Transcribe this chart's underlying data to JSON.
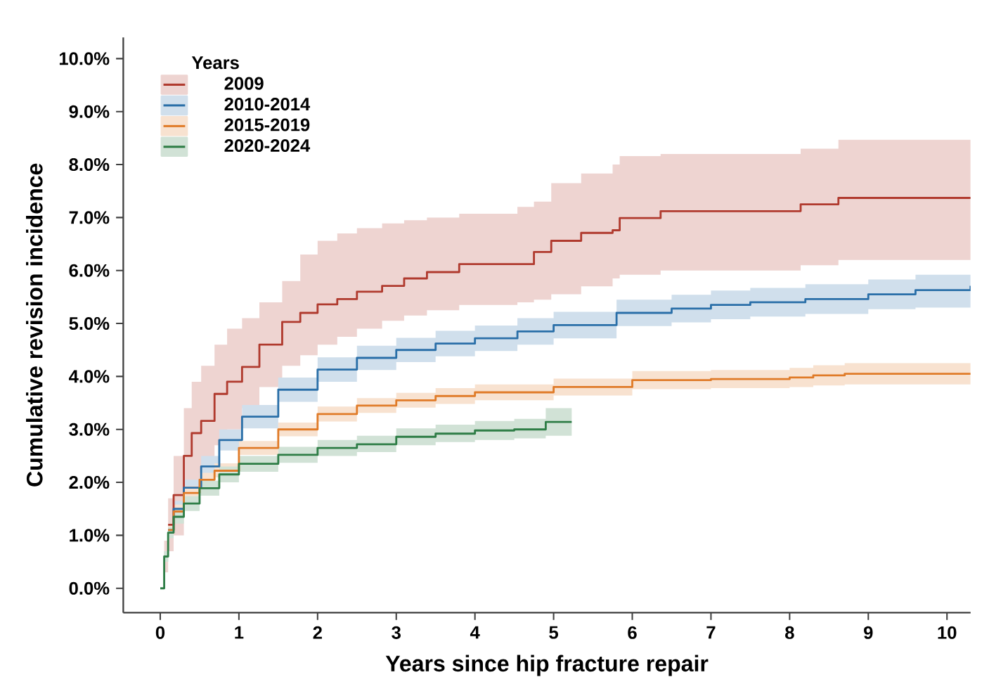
{
  "chart_data": {
    "type": "step",
    "xlabel": "Years since hip fracture repair",
    "ylabel": "Cumulative revision incidence",
    "legend_title": "Years",
    "legend": "top left",
    "xlim": [
      -0.47,
      10.3
    ],
    "ylim": [
      -0.46,
      10.4
    ],
    "xticks": [
      0,
      1,
      2,
      3,
      4,
      5,
      6,
      7,
      8,
      9,
      10
    ],
    "yticks": [
      {
        "value": 0,
        "label": "0.0%"
      },
      {
        "value": 1,
        "label": "1.0%"
      },
      {
        "value": 2,
        "label": "2.0%"
      },
      {
        "value": 3,
        "label": "3.0%"
      },
      {
        "value": 4,
        "label": "4.0%"
      },
      {
        "value": 5,
        "label": "5.0%"
      },
      {
        "value": 6,
        "label": "6.0%"
      },
      {
        "value": 7,
        "label": "7.0%"
      },
      {
        "value": 8,
        "label": "8.0%"
      },
      {
        "value": 9,
        "label": "9.0%"
      },
      {
        "value": 10,
        "label": "10.0%"
      }
    ],
    "series": [
      {
        "name": "2009",
        "color": "#b03a2e",
        "x": [
          0,
          0.05,
          0.1,
          0.17,
          0.3,
          0.4,
          0.52,
          0.69,
          0.85,
          1.04,
          1.26,
          1.55,
          1.78,
          2.0,
          2.25,
          2.5,
          2.82,
          3.1,
          3.39,
          3.8,
          4.54,
          4.75,
          4.97,
          5.35,
          5.75,
          5.84,
          6.36,
          8.14,
          8.62,
          10.3
        ],
        "values": [
          null,
          null,
          1.2,
          1.76,
          2.5,
          2.93,
          3.16,
          3.67,
          3.9,
          4.18,
          4.6,
          5.03,
          5.2,
          5.36,
          5.46,
          5.6,
          5.71,
          5.85,
          5.97,
          6.12,
          6.12,
          6.35,
          6.56,
          6.71,
          6.76,
          6.99,
          7.12,
          7.25,
          7.37,
          7.37
        ],
        "lower": [
          0,
          0.3,
          0.7,
          1.0,
          1.6,
          1.9,
          2.2,
          2.7,
          3.0,
          3.4,
          3.8,
          4.2,
          4.4,
          4.6,
          4.75,
          4.9,
          5.05,
          5.15,
          5.25,
          5.35,
          5.4,
          5.45,
          5.55,
          5.7,
          5.85,
          5.92,
          6.0,
          6.1,
          6.2,
          6.2
        ],
        "upper": [
          0,
          0.9,
          1.7,
          2.5,
          3.4,
          3.9,
          4.2,
          4.6,
          4.9,
          5.1,
          5.4,
          5.8,
          6.3,
          6.56,
          6.7,
          6.8,
          6.89,
          6.95,
          7.0,
          7.07,
          7.2,
          7.3,
          7.65,
          7.83,
          8.0,
          8.16,
          8.2,
          8.3,
          8.47,
          8.47
        ]
      },
      {
        "name": "2010-2014",
        "color": "#2a6fa8",
        "x": [
          0,
          0.05,
          0.1,
          0.17,
          0.3,
          0.52,
          0.75,
          1.04,
          1.5,
          2.0,
          2.5,
          3.0,
          3.5,
          4.0,
          4.54,
          5.0,
          5.8,
          6.5,
          7.0,
          7.5,
          8.2,
          9.0,
          9.6,
          10.3
        ],
        "values": [
          null,
          null,
          1.1,
          1.5,
          1.9,
          2.3,
          2.8,
          3.24,
          3.75,
          4.13,
          4.35,
          4.5,
          4.62,
          4.72,
          4.85,
          4.97,
          5.2,
          5.28,
          5.35,
          5.4,
          5.46,
          5.55,
          5.63,
          5.71
        ],
        "lower": [
          0,
          0.5,
          1.0,
          1.35,
          1.75,
          2.1,
          2.6,
          3.02,
          3.52,
          3.9,
          4.12,
          4.27,
          4.38,
          4.48,
          4.6,
          4.72,
          4.95,
          5.02,
          5.08,
          5.13,
          5.18,
          5.27,
          5.3,
          5.34
        ],
        "upper": [
          0,
          0.7,
          1.2,
          1.65,
          2.05,
          2.5,
          3.0,
          3.46,
          3.98,
          4.36,
          4.58,
          4.73,
          4.86,
          4.96,
          5.1,
          5.22,
          5.45,
          5.54,
          5.62,
          5.67,
          5.74,
          5.83,
          5.92,
          6.0
        ]
      },
      {
        "name": "2015-2019",
        "color": "#e07b28",
        "x": [
          0,
          0.05,
          0.1,
          0.17,
          0.3,
          0.5,
          0.69,
          1.0,
          1.5,
          2.0,
          2.5,
          3.0,
          3.5,
          4.0,
          5.0,
          6.0,
          7.0,
          8.0,
          8.3,
          8.7,
          10.3
        ],
        "values": [
          null,
          null,
          1.1,
          1.45,
          1.8,
          2.05,
          2.22,
          2.65,
          3.0,
          3.29,
          3.45,
          3.55,
          3.63,
          3.7,
          3.8,
          3.93,
          3.95,
          3.98,
          4.02,
          4.05,
          4.05
        ],
        "lower": [
          0,
          0.5,
          1.0,
          1.32,
          1.67,
          1.92,
          2.1,
          2.52,
          2.87,
          3.15,
          3.31,
          3.41,
          3.48,
          3.55,
          3.64,
          3.76,
          3.78,
          3.8,
          3.83,
          3.85,
          3.85
        ],
        "upper": [
          0,
          0.7,
          1.2,
          1.58,
          1.93,
          2.18,
          2.36,
          2.78,
          3.13,
          3.43,
          3.59,
          3.69,
          3.78,
          3.85,
          3.96,
          4.1,
          4.12,
          4.16,
          4.21,
          4.25,
          4.25
        ]
      },
      {
        "name": "2020-2024",
        "color": "#2e7d46",
        "x": [
          0,
          0.05,
          0.1,
          0.17,
          0.3,
          0.5,
          0.75,
          1.0,
          1.5,
          2.0,
          2.5,
          3.0,
          3.5,
          4.0,
          4.5,
          4.9,
          5.23
        ],
        "values": [
          0,
          0.6,
          1.05,
          1.35,
          1.6,
          1.89,
          2.15,
          2.35,
          2.52,
          2.65,
          2.72,
          2.86,
          2.92,
          2.98,
          3.0,
          3.14,
          3.14
        ],
        "lower": [
          0,
          0.5,
          0.95,
          1.22,
          1.46,
          1.75,
          2.0,
          2.2,
          2.37,
          2.5,
          2.57,
          2.7,
          2.76,
          2.8,
          2.83,
          2.88,
          2.88
        ],
        "upper": [
          0,
          0.7,
          1.15,
          1.48,
          1.74,
          2.03,
          2.3,
          2.5,
          2.67,
          2.8,
          2.88,
          3.02,
          3.09,
          3.16,
          3.2,
          3.4,
          3.4
        ]
      }
    ]
  }
}
